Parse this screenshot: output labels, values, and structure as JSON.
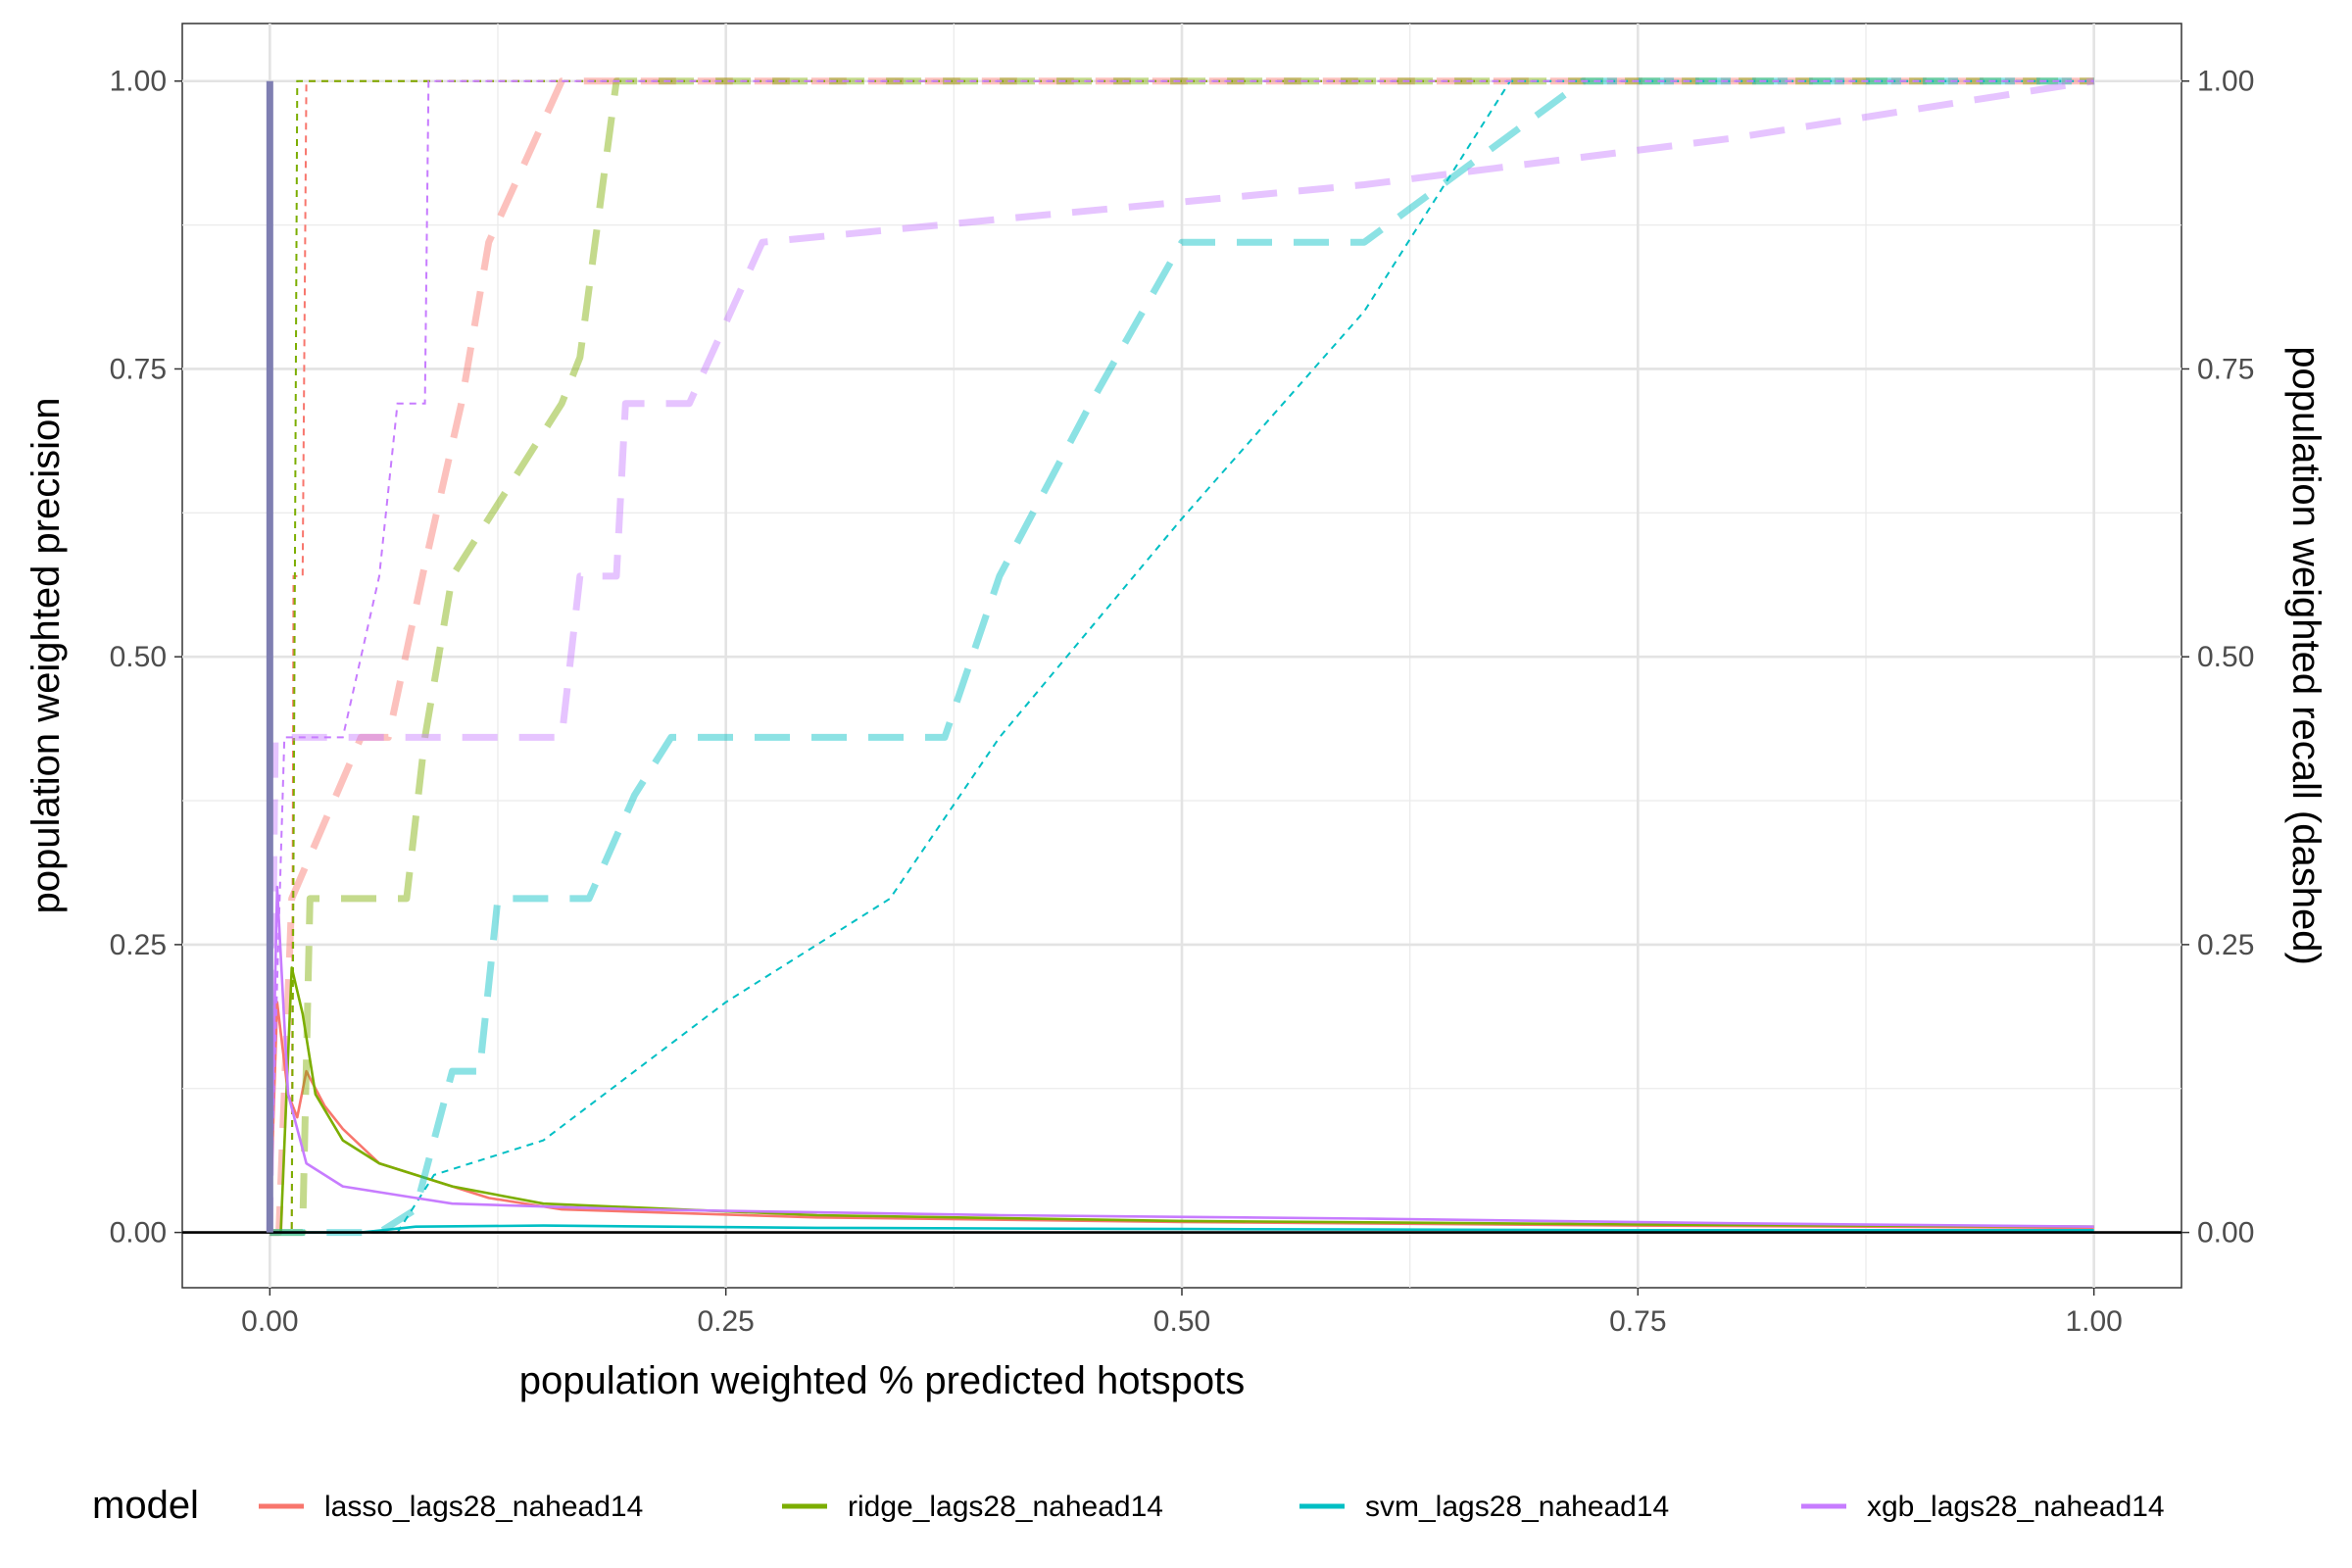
{
  "chart_data": {
    "type": "line",
    "xlabel": "population weighted % predicted hotspots",
    "ylabel": "population weighted precision",
    "y2label": "population weighted recall (dashed)",
    "xlim": [
      -0.048,
      1.048
    ],
    "ylim": [
      -0.048,
      1.05
    ],
    "x_ticks": [
      0,
      0.25,
      0.5,
      0.75,
      1
    ],
    "x_tick_labels": [
      "0.00",
      "0.25",
      "0.50",
      "0.75",
      "1.00"
    ],
    "y_ticks": [
      0,
      0.25,
      0.5,
      0.75,
      1
    ],
    "y_tick_labels": [
      "0.00",
      "0.25",
      "0.50",
      "0.75",
      "1.00"
    ],
    "y2_tick_labels": [
      "0.00",
      "0.25",
      "0.50",
      "0.75",
      "1.00"
    ],
    "grid": true,
    "legend": {
      "title": "model",
      "position": "bottom"
    },
    "reference_lines": [
      {
        "orientation": "horizontal",
        "y": 0,
        "color": "#000000"
      },
      {
        "orientation": "vertical",
        "x": 0,
        "color": "#7F7FB2",
        "from": 0,
        "to": 1
      }
    ],
    "series": [
      {
        "name": "lasso_lags28_nahead14",
        "color": "#F8766D",
        "precision": [
          [
            0.0,
            0.0
          ],
          [
            0.004,
            0.2
          ],
          [
            0.01,
            0.12
          ],
          [
            0.015,
            0.1
          ],
          [
            0.02,
            0.14
          ],
          [
            0.03,
            0.11
          ],
          [
            0.04,
            0.09
          ],
          [
            0.06,
            0.06
          ],
          [
            0.08,
            0.05
          ],
          [
            0.12,
            0.03
          ],
          [
            0.16,
            0.02
          ],
          [
            0.3,
            0.013
          ],
          [
            0.5,
            0.009
          ],
          [
            0.75,
            0.006
          ],
          [
            1.0,
            0.004
          ]
        ],
        "recall_thin": [
          [
            0.0,
            0.0
          ],
          [
            0.012,
            0.0
          ],
          [
            0.013,
            0.57
          ],
          [
            0.018,
            0.57
          ],
          [
            0.02,
            1.0
          ],
          [
            1.0,
            1.0
          ]
        ],
        "recall_thick": [
          [
            0.0,
            0.0
          ],
          [
            0.005,
            0.0
          ],
          [
            0.012,
            0.29
          ],
          [
            0.05,
            0.43
          ],
          [
            0.065,
            0.43
          ],
          [
            0.085,
            0.58
          ],
          [
            0.105,
            0.72
          ],
          [
            0.12,
            0.86
          ],
          [
            0.14,
            0.93
          ],
          [
            0.16,
            1.0
          ],
          [
            1.0,
            1.0
          ]
        ]
      },
      {
        "name": "ridge_lags28_nahead14",
        "color": "#7CAE00",
        "precision": [
          [
            0.0,
            0.0
          ],
          [
            0.006,
            0.0
          ],
          [
            0.012,
            0.23
          ],
          [
            0.018,
            0.19
          ],
          [
            0.025,
            0.12
          ],
          [
            0.04,
            0.08
          ],
          [
            0.06,
            0.06
          ],
          [
            0.1,
            0.04
          ],
          [
            0.15,
            0.025
          ],
          [
            0.3,
            0.015
          ],
          [
            0.5,
            0.01
          ],
          [
            0.75,
            0.007
          ],
          [
            1.0,
            0.005
          ]
        ],
        "recall_thin": [
          [
            0.0,
            0.0
          ],
          [
            0.012,
            0.0
          ],
          [
            0.015,
            1.0
          ],
          [
            1.0,
            1.0
          ]
        ],
        "recall_thick": [
          [
            0.0,
            0.0
          ],
          [
            0.018,
            0.0
          ],
          [
            0.022,
            0.29
          ],
          [
            0.075,
            0.29
          ],
          [
            0.085,
            0.43
          ],
          [
            0.1,
            0.57
          ],
          [
            0.12,
            0.62
          ],
          [
            0.16,
            0.72
          ],
          [
            0.17,
            0.76
          ],
          [
            0.19,
            1.0
          ],
          [
            1.0,
            1.0
          ]
        ]
      },
      {
        "name": "svm_lags28_nahead14",
        "color": "#00BFC4",
        "precision": [
          [
            0.0,
            0.0
          ],
          [
            0.05,
            0.0
          ],
          [
            0.08,
            0.005
          ],
          [
            0.15,
            0.006
          ],
          [
            0.3,
            0.004
          ],
          [
            0.5,
            0.003
          ],
          [
            0.75,
            0.002
          ],
          [
            1.0,
            0.002
          ]
        ],
        "recall_thin": [
          [
            0.0,
            0.0
          ],
          [
            0.07,
            0.0
          ],
          [
            0.09,
            0.05
          ],
          [
            0.15,
            0.08
          ],
          [
            0.25,
            0.2
          ],
          [
            0.34,
            0.29
          ],
          [
            0.4,
            0.43
          ],
          [
            0.5,
            0.62
          ],
          [
            0.6,
            0.8
          ],
          [
            0.68,
            1.0
          ],
          [
            1.0,
            1.0
          ]
        ],
        "recall_thick": [
          [
            0.0,
            0.0
          ],
          [
            0.06,
            0.0
          ],
          [
            0.08,
            0.02
          ],
          [
            0.1,
            0.14
          ],
          [
            0.115,
            0.14
          ],
          [
            0.125,
            0.29
          ],
          [
            0.175,
            0.29
          ],
          [
            0.2,
            0.38
          ],
          [
            0.22,
            0.43
          ],
          [
            0.37,
            0.43
          ],
          [
            0.4,
            0.57
          ],
          [
            0.45,
            0.72
          ],
          [
            0.5,
            0.86
          ],
          [
            0.6,
            0.86
          ],
          [
            0.66,
            0.93
          ],
          [
            0.72,
            1.0
          ],
          [
            1.0,
            1.0
          ]
        ]
      },
      {
        "name": "xgb_lags28_nahead14",
        "color": "#C77CFF",
        "precision": [
          [
            0.0,
            0.0
          ],
          [
            0.004,
            0.3
          ],
          [
            0.01,
            0.12
          ],
          [
            0.02,
            0.06
          ],
          [
            0.04,
            0.04
          ],
          [
            0.06,
            0.035
          ],
          [
            0.08,
            0.03
          ],
          [
            0.1,
            0.025
          ],
          [
            0.2,
            0.02
          ],
          [
            0.4,
            0.015
          ],
          [
            0.6,
            0.012
          ],
          [
            0.8,
            0.008
          ],
          [
            1.0,
            0.005
          ]
        ],
        "recall_thin": [
          [
            0.0,
            0.0
          ],
          [
            0.008,
            0.43
          ],
          [
            0.04,
            0.43
          ],
          [
            0.06,
            0.57
          ],
          [
            0.07,
            0.72
          ],
          [
            0.085,
            0.72
          ],
          [
            0.087,
            1.0
          ],
          [
            1.0,
            1.0
          ]
        ],
        "recall_thick": [
          [
            0.0,
            0.0
          ],
          [
            0.003,
            0.43
          ],
          [
            0.16,
            0.43
          ],
          [
            0.17,
            0.57
          ],
          [
            0.19,
            0.57
          ],
          [
            0.195,
            0.72
          ],
          [
            0.23,
            0.72
          ],
          [
            0.27,
            0.86
          ],
          [
            0.4,
            0.88
          ],
          [
            0.6,
            0.91
          ],
          [
            0.8,
            0.95
          ],
          [
            1.0,
            1.0
          ]
        ]
      }
    ]
  }
}
